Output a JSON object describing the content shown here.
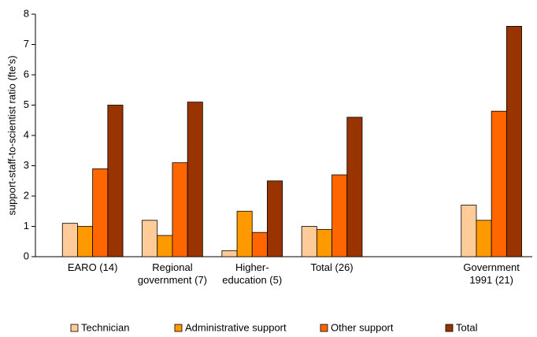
{
  "chart_data": {
    "type": "bar",
    "y_label": "support-staff-to-scientist ratio (fte's)",
    "categories": [
      "EARO (14)",
      "Regional government (7)",
      "Higher-education (5)",
      "Total (26)",
      null,
      "Government 1991 (21)"
    ],
    "series": [
      {
        "name": "Technician",
        "color": "#ffcc99",
        "values": [
          1.1,
          1.2,
          0.2,
          1.0,
          null,
          1.7
        ]
      },
      {
        "name": "Administrative support",
        "color": "#ff9900",
        "values": [
          1.0,
          0.7,
          1.5,
          0.9,
          null,
          1.2
        ]
      },
      {
        "name": "Other support",
        "color": "#ff6600",
        "values": [
          2.9,
          3.1,
          0.8,
          2.7,
          null,
          4.8
        ]
      },
      {
        "name": "Total",
        "color": "#993300",
        "values": [
          5.0,
          5.1,
          2.5,
          4.6,
          null,
          7.6
        ]
      }
    ],
    "ylim": [
      0,
      8
    ],
    "yticks": [
      0,
      1,
      2,
      3,
      4,
      5,
      6,
      7,
      8
    ],
    "grid": false,
    "legend": "bottom"
  }
}
